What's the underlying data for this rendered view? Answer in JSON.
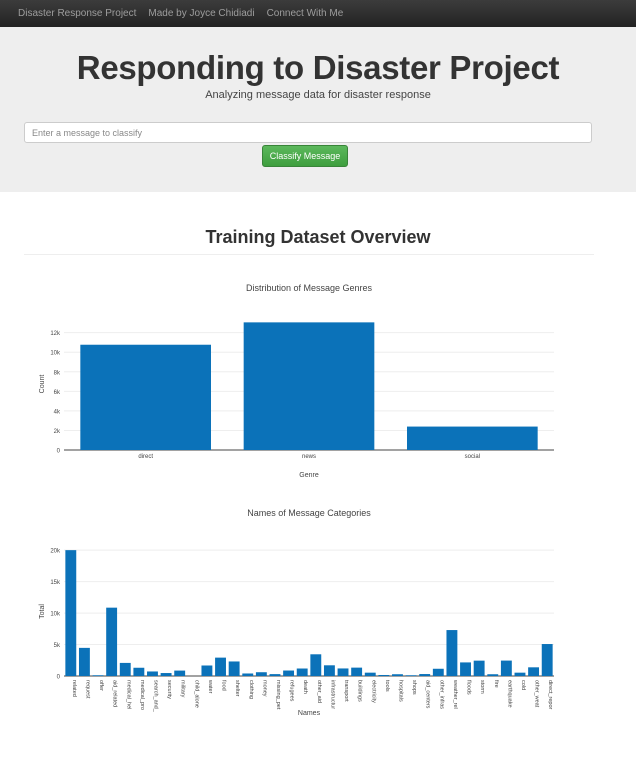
{
  "navbar": {
    "brand": "Disaster Response Project",
    "link1": "Made by Joyce Chidiadi",
    "link2": "Connect With Me"
  },
  "jumbotron": {
    "title": "Responding to Disaster Project",
    "subtitle": "Analyzing message data for disaster response",
    "input_placeholder": "Enter a message to classify",
    "input_value": "",
    "button_label": "Classify Message"
  },
  "section_title": "Training Dataset Overview",
  "colors": {
    "bar": "#0b72b9",
    "button": "#4cae4c",
    "navbar": "#222222"
  },
  "chart_data": [
    {
      "type": "bar",
      "title": "Distribution of Message Genres",
      "xlabel": "Genre",
      "ylabel": "Count",
      "categories": [
        "direct",
        "news",
        "social"
      ],
      "values": [
        10766,
        13054,
        2396
      ],
      "ylim": [
        0,
        13500
      ],
      "yticks": [
        0,
        2000,
        4000,
        6000,
        8000,
        10000,
        12000
      ],
      "ytick_labels": [
        "0",
        "2k",
        "4k",
        "6k",
        "8k",
        "10k",
        "12k"
      ],
      "grid": true
    },
    {
      "type": "bar",
      "title": "Names of Message Categories",
      "xlabel": "Names",
      "ylabel": "Total",
      "categories": [
        "related",
        "request",
        "offer",
        "aid_related",
        "medical_hel",
        "medical_pro",
        "search_and_",
        "security",
        "military",
        "child_alone",
        "water",
        "food",
        "shelter",
        "clothing",
        "money",
        "missing_pet",
        "refugees",
        "death",
        "other_aid",
        "infrastructur",
        "transport",
        "buildings",
        "electricity",
        "tools",
        "hospitals",
        "shops",
        "aid_centers",
        "other_infras",
        "weather_rel",
        "floods",
        "storm",
        "fire",
        "earthquake",
        "cold",
        "other_weat",
        "direct_repor"
      ],
      "values": [
        20000,
        4470,
        120,
        10860,
        2080,
        1310,
        720,
        470,
        860,
        0,
        1670,
        2920,
        2310,
        400,
        600,
        300,
        870,
        1190,
        3450,
        1700,
        1200,
        1330,
        530,
        160,
        280,
        120,
        310,
        1150,
        7300,
        2160,
        2440,
        280,
        2450,
        530,
        1380,
        5080
      ],
      "ylim": [
        0,
        20500
      ],
      "yticks": [
        0,
        5000,
        10000,
        15000,
        20000
      ],
      "ytick_labels": [
        "0",
        "5k",
        "10k",
        "15k",
        "20k"
      ],
      "grid": true
    }
  ]
}
